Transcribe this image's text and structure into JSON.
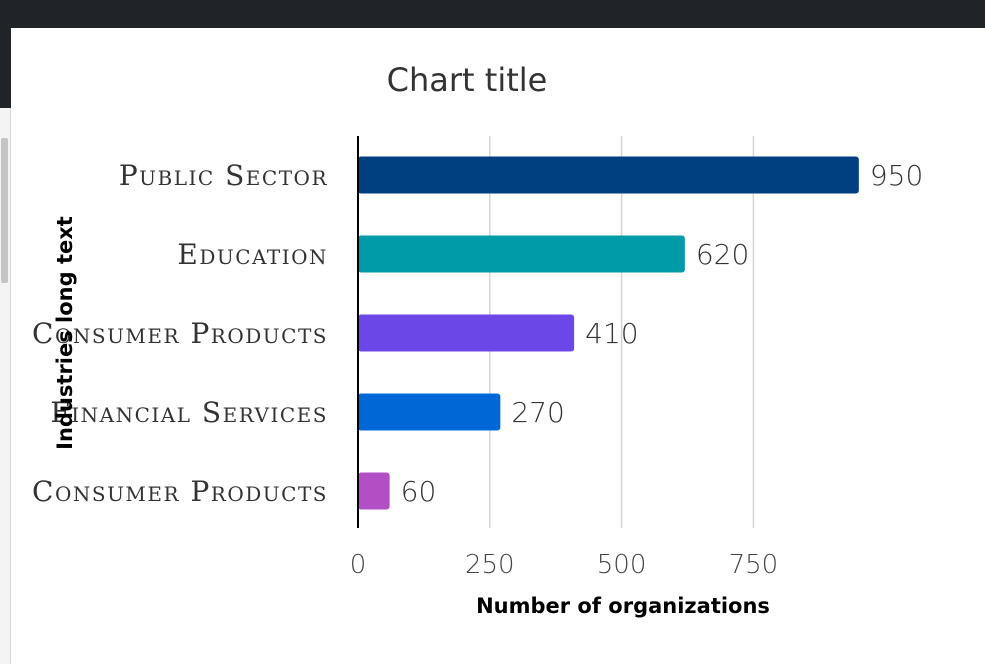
{
  "chart_data": {
    "type": "bar",
    "orientation": "horizontal",
    "title": "Chart title",
    "xlabel": "Number of organizations",
    "ylabel": "Industries long text",
    "xlim": [
      0,
      950
    ],
    "xticks": [
      0,
      250,
      500,
      750
    ],
    "grid": true,
    "categories": [
      "Public Sector",
      "Education",
      "Consumer Products",
      "Financial Services",
      "Consumer Products"
    ],
    "values": [
      950,
      620,
      410,
      270,
      60
    ],
    "colors": [
      "#003F80",
      "#009BA8",
      "#6B47E8",
      "#0068D6",
      "#B34FC4"
    ]
  }
}
